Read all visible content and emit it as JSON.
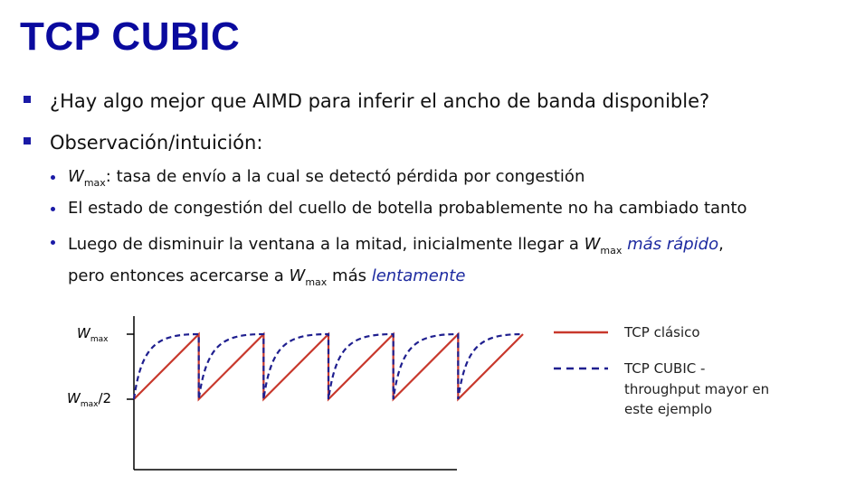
{
  "slide": {
    "title": "TCP CUBIC"
  },
  "bullets": {
    "b1": "¿Hay algo mejor que AIMD para inferir el ancho de banda disponible?",
    "b2": "Observación/intuición:",
    "s1": {
      "w": "W",
      "sub": "max",
      "rest": ": tasa de envío a la cual se detectó pérdida por congestión"
    },
    "s2": "El estado de congestión del cuello de botella probablemente no ha cambiado tanto",
    "s3": {
      "part1": "Luego de disminuir la ventana a la mitad, inicialmente llegar a ",
      "w": "W",
      "sub": "max",
      "em1": "más rápido",
      "comma": ",",
      "part2": "pero entonces acercarse a ",
      "w2": "W",
      "sub2": "max",
      "part3": " más ",
      "em2": "lentamente"
    }
  },
  "figure": {
    "ylabel_top": {
      "w": "W",
      "sub": "max"
    },
    "ylabel_half": {
      "w": "W",
      "sub": "max",
      "suffix": "/2"
    },
    "legend": [
      {
        "label": "TCP clásico",
        "color": "#c8382c",
        "style": "solid"
      },
      {
        "lines": [
          "TCP CUBIC -",
          "throughput mayor en",
          "este ejemplo"
        ],
        "color": "#1f1f8f",
        "style": "dashed"
      }
    ],
    "cycles": 6,
    "colors": {
      "classic": "#c8382c",
      "cubic": "#1f1f8f",
      "axis": "#000000"
    }
  }
}
